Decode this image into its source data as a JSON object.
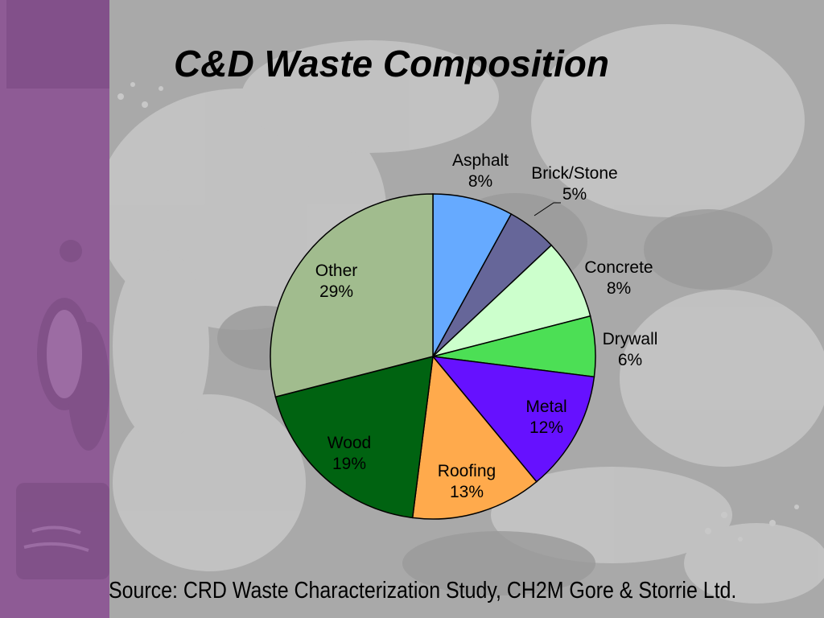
{
  "slide": {
    "title": "C&D Waste Composition",
    "source": "Source: CRD Waste Characterization Study, CH2M Gore & Storrie Ltd.",
    "theme_colors": {
      "sidebar": "#8e5b95",
      "background": "#a9a9a9"
    }
  },
  "chart_data": {
    "type": "pie",
    "title": "C&D Waste Composition",
    "start_angle": "12 o'clock, clockwise",
    "legend": "none (data labels on/near slices)",
    "categories": [
      "Asphalt",
      "Brick/Stone",
      "Concrete",
      "Drywall",
      "Metal",
      "Roofing",
      "Wood",
      "Other"
    ],
    "values": [
      8,
      5,
      8,
      6,
      12,
      13,
      19,
      29
    ],
    "unit": "%",
    "colors": [
      "#66aaff",
      "#666699",
      "#ccffcc",
      "#4cdf55",
      "#6611ff",
      "#ffaa4c",
      "#006311",
      "#a1bc8e"
    ],
    "labels": [
      {
        "name": "Asphalt",
        "pct": "8%"
      },
      {
        "name": "Brick/Stone",
        "pct": "5%"
      },
      {
        "name": "Concrete",
        "pct": "8%"
      },
      {
        "name": "Drywall",
        "pct": "6%"
      },
      {
        "name": "Metal",
        "pct": "12%"
      },
      {
        "name": "Roofing",
        "pct": "13%"
      },
      {
        "name": "Wood",
        "pct": "19%"
      },
      {
        "name": "Other",
        "pct": "29%"
      }
    ]
  }
}
